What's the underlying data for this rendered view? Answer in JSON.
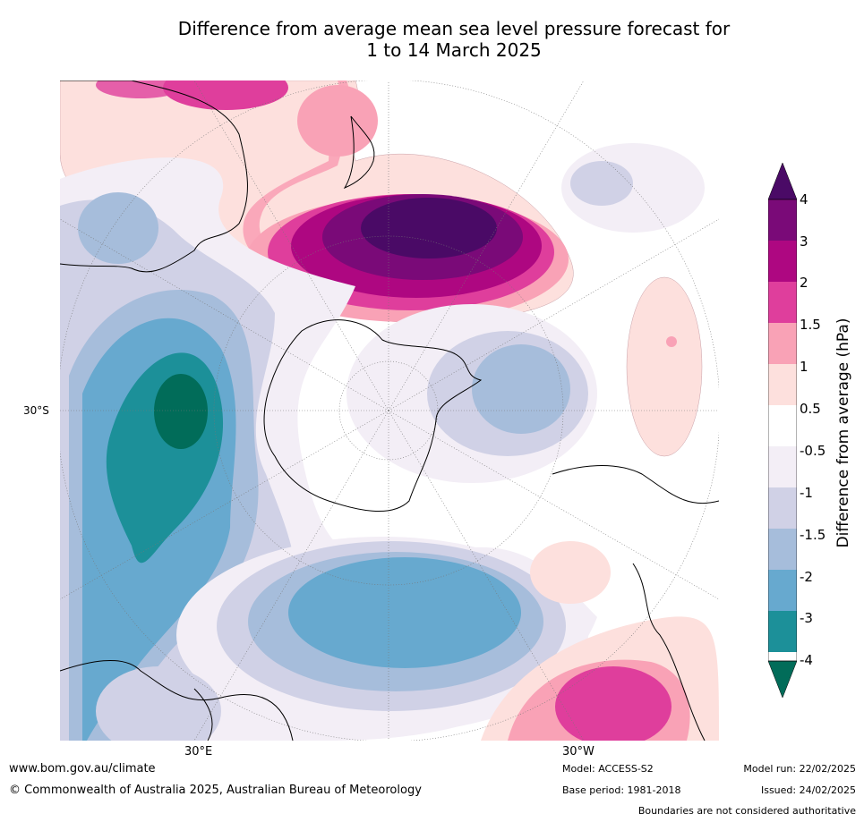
{
  "title": {
    "line1": "Difference from average mean sea level pressure forecast for",
    "line2": "1 to 14 March 2025"
  },
  "map": {
    "projection": "south-polar-stereographic",
    "lat_label": "30°S",
    "lon_labels": [
      "30°E",
      "30°W"
    ]
  },
  "colorbar": {
    "title": "Difference from average (hPa)",
    "ticks": [
      "4",
      "3",
      "2",
      "1.5",
      "1",
      "0.5",
      "-0.5",
      "-1",
      "-1.5",
      "-2",
      "-3",
      "-4"
    ],
    "bins": [
      {
        "range": "> 4",
        "color": "#4a0a66"
      },
      {
        "range": "3 to 4",
        "color": "#7a0a78"
      },
      {
        "range": "2 to 3",
        "color": "#ae0781"
      },
      {
        "range": "1.5 to 2",
        "color": "#df3e9c"
      },
      {
        "range": "1 to 1.5",
        "color": "#f9a2b6"
      },
      {
        "range": "0.5 to 1",
        "color": "#fde0dd"
      },
      {
        "range": "-0.5 to 0.5",
        "color": "#ffffff"
      },
      {
        "range": "-1 to -0.5",
        "color": "#f3eef6"
      },
      {
        "range": "-1.5 to -1",
        "color": "#d0d1e6"
      },
      {
        "range": "-2 to -1.5",
        "color": "#a6bddb"
      },
      {
        "range": "-3 to -2",
        "color": "#67a9cf"
      },
      {
        "range": "-4 to -3",
        "color": "#1c9099"
      },
      {
        "range": "< -4",
        "color": "#016c59"
      }
    ]
  },
  "footer": {
    "website": "www.bom.gov.au/climate",
    "copyright": "© Commonwealth of Australia 2025, Australian Bureau of Meteorology",
    "model": "Model: ACCESS-S2",
    "base_period": "Base period: 1981-2018",
    "model_run": "Model run: 22/02/2025",
    "issued": "Issued: 24/02/2025",
    "disclaimer": "Boundaries are not considered authoritative"
  }
}
